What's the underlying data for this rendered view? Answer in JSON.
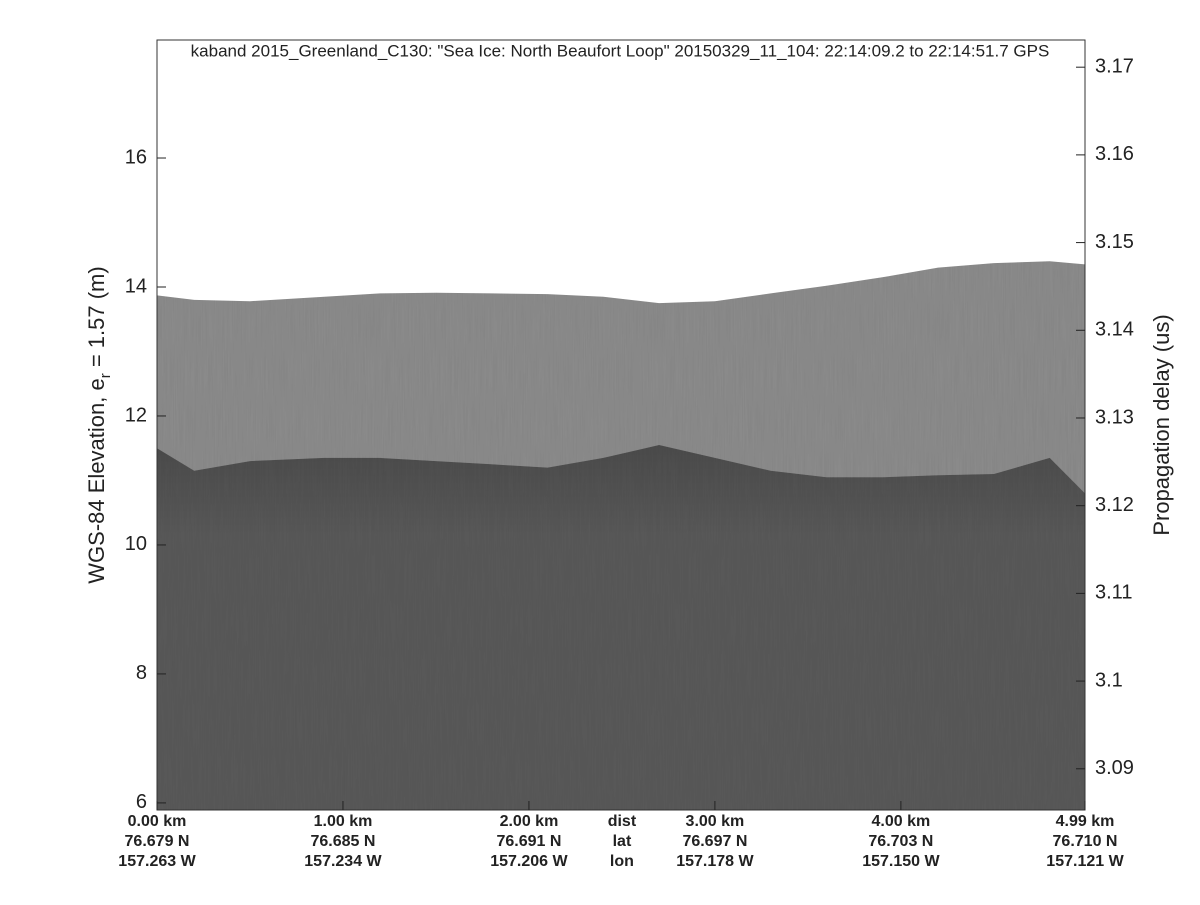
{
  "chart_data": {
    "type": "echogram",
    "title": "kaband 2015_Greenland_C130: \"Sea Ice: North Beaufort Loop\"  20150329_11_104: 22:14:09.2 to 22:14:51.7 GPS",
    "ylabel": [
      "WGS-84 Elevation, e",
      "r",
      " = 1.57 (m)"
    ],
    "y2label": "Propagation delay (us)",
    "xlim": [
      0,
      4.99
    ],
    "xticks": [
      {
        "value": 0,
        "label": "0.00 km"
      },
      {
        "value": 1,
        "label": "1.00 km"
      },
      {
        "value": 2,
        "label": "2.00 km"
      },
      {
        "value": 3,
        "label": "3.00 km"
      },
      {
        "value": 4,
        "label": "4.00 km"
      },
      {
        "value": 4.99,
        "label": "4.99 km"
      }
    ],
    "lat_labels": [
      "76.679 N",
      "76.685 N",
      "76.691 N",
      "76.697 N",
      "76.703 N",
      "76.710 N"
    ],
    "lon_labels": [
      "157.263 W",
      "157.234 W",
      "157.206 W",
      "157.178 W",
      "157.150 W",
      "157.121 W"
    ],
    "row_labels": [
      "dist",
      "lat",
      "lon"
    ],
    "ylim": [
      5.89,
      17.83
    ],
    "yticks": [
      6,
      8,
      10,
      12,
      14,
      16
    ],
    "y2lim": [
      3.0853,
      3.1731
    ],
    "y2ticks": [
      3.09,
      3.1,
      3.11,
      3.12,
      3.13,
      3.14,
      3.15,
      3.16,
      3.17
    ],
    "x": [
      0,
      0.2,
      0.5,
      0.9,
      1.2,
      1.5,
      1.8,
      2.1,
      2.4,
      2.7,
      3.0,
      3.3,
      3.6,
      3.9,
      4.2,
      4.5,
      4.8,
      4.99
    ],
    "series": [
      {
        "color": "#8e8e8e",
        "values": [
          13.87,
          13.8,
          13.78,
          13.85,
          13.9,
          13.91,
          13.9,
          13.89,
          13.85,
          13.75,
          13.78,
          13.9,
          14.02,
          14.15,
          14.3,
          14.37,
          14.4,
          14.35
        ]
      },
      {
        "color": "#5b5b5b",
        "values": [
          11.5,
          11.15,
          11.3,
          11.35,
          11.35,
          11.3,
          11.25,
          11.2,
          11.35,
          11.55,
          11.35,
          11.15,
          11.05,
          11.05,
          11.08,
          11.1,
          11.35,
          10.8
        ]
      }
    ]
  }
}
